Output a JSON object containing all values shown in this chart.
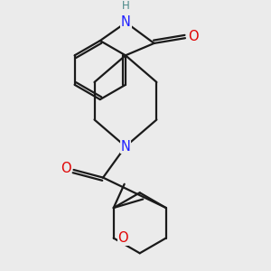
{
  "bg_color": "#ebebeb",
  "bond_color": "#1a1a1a",
  "N_color": "#2020ff",
  "O_color": "#e00000",
  "H_color": "#4a8888",
  "font_size": 10.5,
  "line_width": 1.6,
  "xlim": [
    -2.5,
    2.5
  ],
  "ylim": [
    -3.2,
    2.8
  ]
}
